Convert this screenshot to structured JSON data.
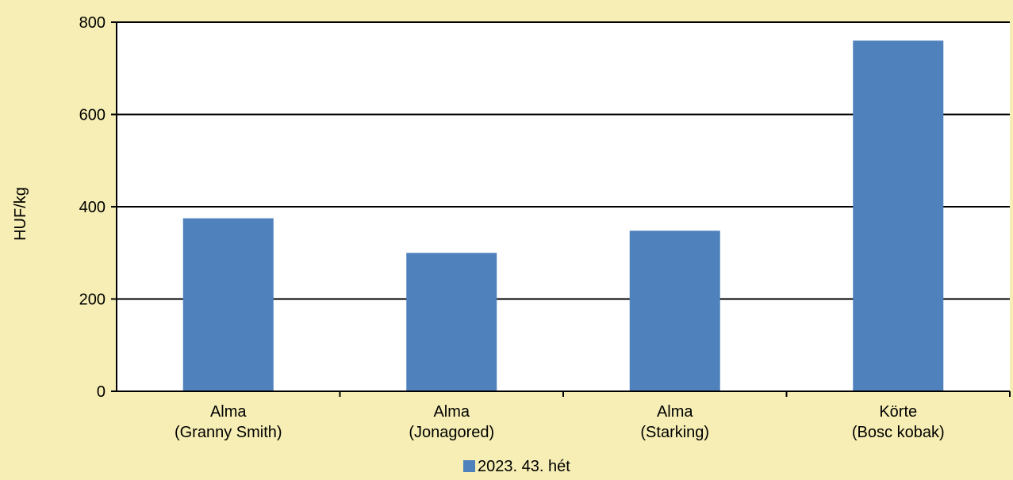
{
  "chart_data": {
    "type": "bar",
    "categories": [
      [
        "Alma",
        "(Granny Smith)"
      ],
      [
        "Alma",
        "(Jonagored)"
      ],
      [
        "Alma",
        "(Starking)"
      ],
      [
        "Körte",
        "(Bosc kobak)"
      ]
    ],
    "series": [
      {
        "name": "2023. 43. hét",
        "values": [
          375,
          300,
          348,
          760
        ],
        "color": "#4f81bd"
      }
    ],
    "ylabel": "HUF/kg",
    "xlabel": "",
    "ylim": [
      0,
      800
    ],
    "yticks": [
      0,
      200,
      400,
      600,
      800
    ],
    "grid": true,
    "legend_position": "bottom"
  }
}
